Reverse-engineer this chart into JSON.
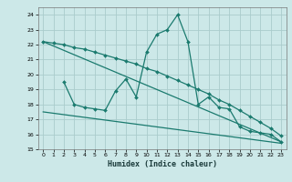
{
  "xlabel": "Humidex (Indice chaleur)",
  "bg_color": "#cce8e8",
  "grid_color": "#aacccc",
  "line_color": "#1a7a6e",
  "ylim": [
    15,
    24.5
  ],
  "xlim": [
    -0.5,
    23.5
  ],
  "yticks": [
    15,
    16,
    17,
    18,
    19,
    20,
    21,
    22,
    23,
    24
  ],
  "xticks": [
    0,
    1,
    2,
    3,
    4,
    5,
    6,
    7,
    8,
    9,
    10,
    11,
    12,
    13,
    14,
    15,
    16,
    17,
    18,
    19,
    20,
    21,
    22,
    23
  ],
  "line1_x": [
    0,
    1,
    2,
    3,
    4,
    5,
    6,
    7,
    8,
    9,
    10,
    11,
    12,
    13,
    14,
    15,
    16,
    17,
    18,
    19,
    20,
    21,
    22,
    23
  ],
  "line1_y": [
    22.2,
    22.1,
    22.0,
    21.8,
    21.7,
    21.5,
    21.3,
    21.1,
    20.9,
    20.7,
    20.4,
    20.2,
    19.9,
    19.6,
    19.3,
    19.0,
    18.7,
    18.3,
    18.0,
    17.6,
    17.2,
    16.8,
    16.4,
    15.9
  ],
  "line2_x": [
    2,
    3,
    4,
    5,
    6,
    7,
    8,
    9,
    10,
    11,
    12,
    13,
    14,
    15,
    16,
    17,
    18,
    19,
    20,
    21,
    22,
    23
  ],
  "line2_y": [
    19.5,
    18.0,
    17.8,
    17.7,
    17.6,
    18.9,
    19.7,
    18.5,
    21.5,
    22.7,
    23.0,
    24.0,
    22.2,
    18.0,
    18.5,
    17.8,
    17.7,
    16.5,
    16.2,
    16.1,
    16.0,
    15.5
  ],
  "line3_x": [
    0,
    23
  ],
  "line3_y": [
    22.2,
    15.5
  ],
  "line4_x": [
    0,
    23
  ],
  "line4_y": [
    17.5,
    15.4
  ]
}
